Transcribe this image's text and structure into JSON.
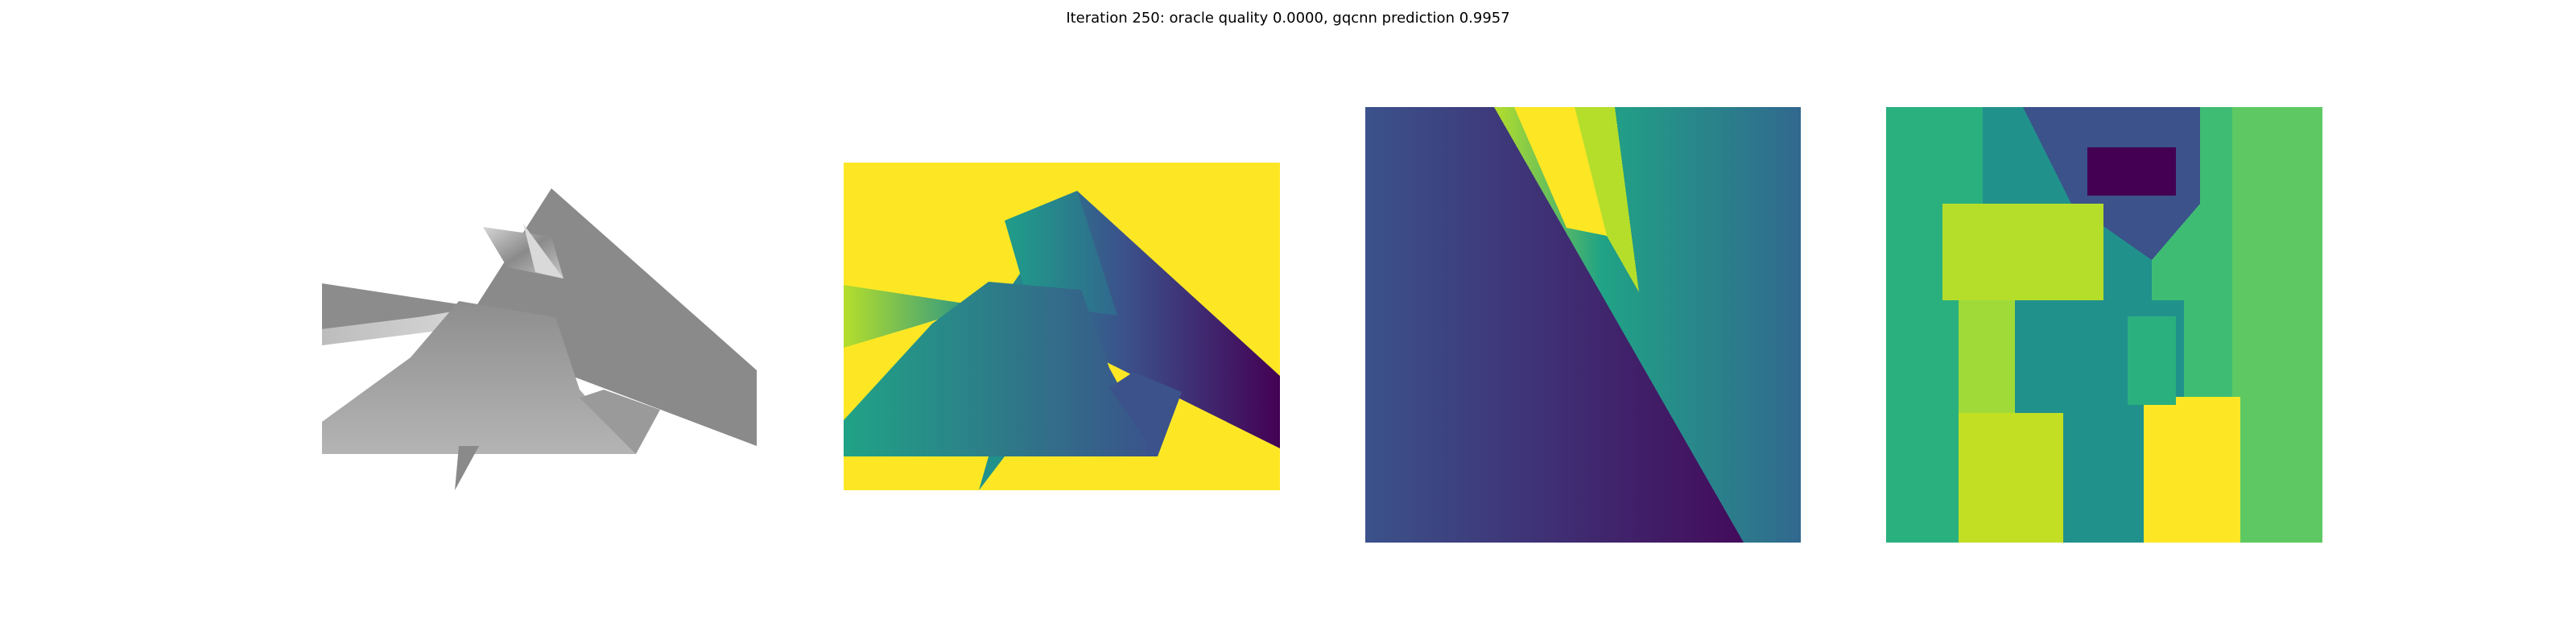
{
  "figure": {
    "title": "Iteration 250: oracle quality 0.0000, gqcnn prediction 0.9957"
  },
  "panels": [
    {
      "id": "render",
      "kind": "rendered-object",
      "colormap": "gray"
    },
    {
      "id": "depth",
      "kind": "depth-image",
      "colormap": "viridis"
    },
    {
      "id": "crop-a",
      "kind": "depth-crop",
      "colormap": "viridis"
    },
    {
      "id": "crop-b",
      "kind": "depth-crop",
      "colormap": "viridis"
    }
  ],
  "colors": {
    "background": "#ffffff",
    "viridis_dark": "#440154",
    "viridis_blue": "#3b528b",
    "viridis_teal": "#21918c",
    "viridis_green": "#5ec962",
    "viridis_yellow": "#fde725",
    "object_gray": "#8a8a8a"
  }
}
